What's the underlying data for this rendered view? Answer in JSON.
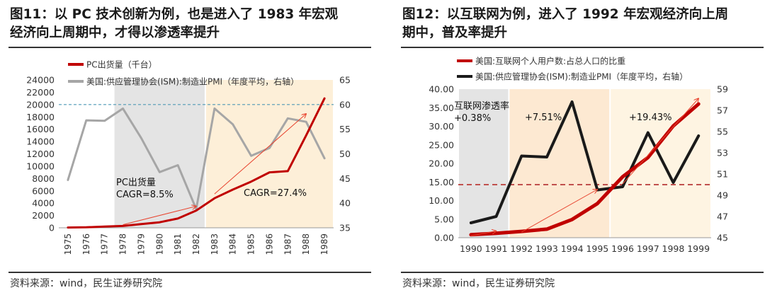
{
  "left": {
    "title_line1": "图11：以 PC 技术创新为例，也是进入了 1983 年宏观",
    "title_line2": "经济向上周期中，才得以渗透率提升",
    "source": "资料来源：wind，民生证券研究院",
    "chart_data": {
      "type": "line",
      "categories": [
        "1975",
        "1976",
        "1977",
        "1978",
        "1979",
        "1980",
        "1981",
        "1982",
        "1983",
        "1984",
        "1985",
        "1986",
        "1987",
        "1988",
        "1989"
      ],
      "series": [
        {
          "name": "PC出货量（千台）",
          "axis": "left",
          "color": "#c00000",
          "values": [
            50,
            80,
            200,
            300,
            600,
            900,
            1500,
            2800,
            4800,
            6200,
            7500,
            9000,
            9200,
            15000,
            21000
          ]
        },
        {
          "name": "美国:供应管理协会(ISM):制造业PMI（年度平均，右轴）",
          "axis": "right",
          "color": "#a6a6a6",
          "values": [
            44.7,
            56.8,
            56.7,
            59.2,
            53.2,
            46.3,
            47.7,
            38.8,
            59.2,
            56,
            49.6,
            51.2,
            57.2,
            56.5,
            49.1
          ]
        }
      ],
      "ylim_left": [
        0,
        24000
      ],
      "yticks_left": [
        "0",
        "2000",
        "4000",
        "6000",
        "8000",
        "10000",
        "12000",
        "14000",
        "16000",
        "18000",
        "20000",
        "22000",
        "24000"
      ],
      "ylim_right": [
        35,
        65
      ],
      "yticks_right": [
        "35",
        "40",
        "45",
        "50",
        "55",
        "60",
        "65"
      ],
      "reference_line": {
        "axis": "right",
        "value": 60,
        "color": "#4f98b5"
      },
      "shaded_regions": [
        {
          "from": "1978",
          "to": "1982",
          "color": "#e4e4e4"
        },
        {
          "from": "1983",
          "to": "1989",
          "color": "#fdefd8"
        }
      ],
      "annotations": [
        {
          "text_line1": "PC出货量",
          "text_line2": "CAGR=8.5%"
        },
        {
          "text": "CAGR=27.4%"
        }
      ],
      "trend_arrows": [
        {
          "from": [
            "1978",
            500
          ],
          "to": [
            "1982",
            3500
          ]
        },
        {
          "from": [
            "1983",
            5500
          ],
          "to": [
            "1988",
            18500
          ]
        }
      ]
    }
  },
  "right": {
    "title_line1": "图12：以互联网为例，进入了 1992 年宏观经济向上周",
    "title_line2": "期中，普及率提升",
    "source": "资料来源：wind，民生证券研究院",
    "chart_data": {
      "type": "line",
      "categories": [
        "1990",
        "1991",
        "1992",
        "1993",
        "1994",
        "1995",
        "1996",
        "1997",
        "1998",
        "1999"
      ],
      "series": [
        {
          "name": "美国:互联网个人用户数:占总人口的比重",
          "axis": "left",
          "color": "#c00000",
          "values": [
            0.8,
            1.2,
            1.7,
            2.3,
            4.9,
            9.2,
            16.4,
            21.6,
            30.1,
            36.0
          ]
        },
        {
          "name": "美国:供应管理协会(ISM):制造业PMI（年度平均，右轴）",
          "axis": "right",
          "color": "#1a1a1a",
          "values": [
            46.4,
            47.0,
            52.7,
            52.6,
            57.8,
            49.5,
            49.8,
            54.9,
            50.2,
            54.6
          ]
        }
      ],
      "ylim_left": [
        0,
        40
      ],
      "yticks_left": [
        "0.00",
        "5.00",
        "10.00",
        "15.00",
        "20.00",
        "25.00",
        "30.00",
        "35.00",
        "40.00"
      ],
      "ylim_right": [
        45,
        59
      ],
      "yticks_right": [
        "45",
        "47",
        "49",
        "51",
        "53",
        "55",
        "57",
        "59"
      ],
      "reference_line": {
        "axis": "right",
        "value": 50,
        "color": "#c0504d"
      },
      "shaded_regions": [
        {
          "from": "1990",
          "to": "1991",
          "color": "#e4e4e4"
        },
        {
          "from": "1992",
          "to": "1995",
          "color": "#fde9d2"
        },
        {
          "from": "1996",
          "to": "1999",
          "color": "#fef4e2"
        }
      ],
      "annotations": [
        {
          "text_line1": "互联网渗透率",
          "text_line2": "+0.38%"
        },
        {
          "text": "+7.51%"
        },
        {
          "text": "+19.43%"
        }
      ],
      "trend_arrows": [
        {
          "from": [
            "1990",
            0.5
          ],
          "to": [
            "1991",
            1.8
          ]
        },
        {
          "from": [
            "1992",
            1.5
          ],
          "to": [
            "1995",
            13.0
          ]
        },
        {
          "from": [
            "1996",
            14.5
          ],
          "to": [
            "1999",
            37.5
          ]
        }
      ]
    }
  }
}
